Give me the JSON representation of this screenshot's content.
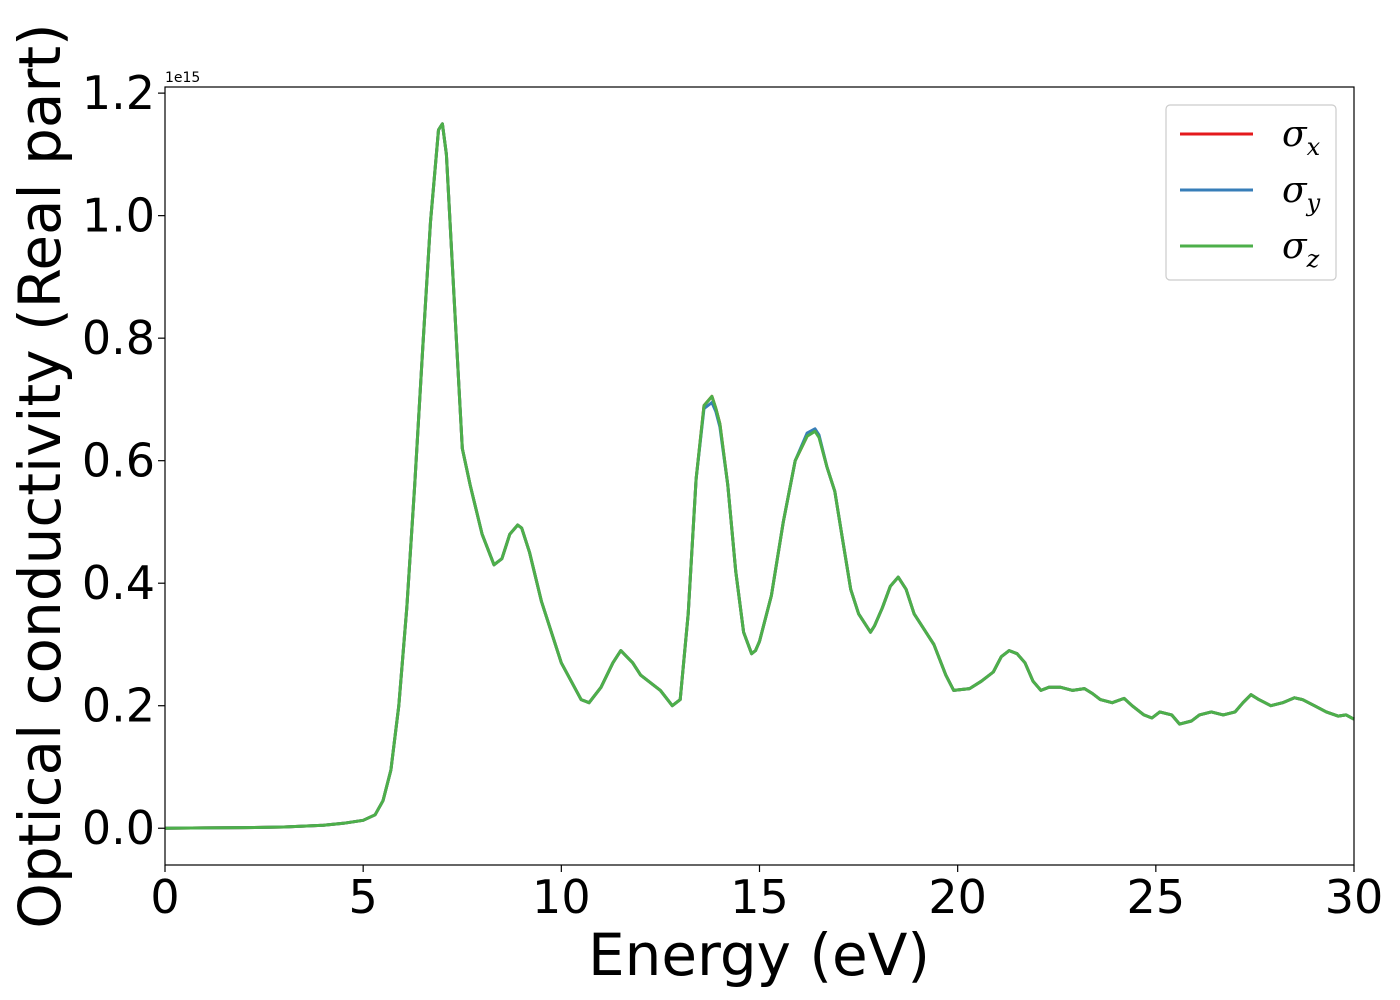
{
  "chart_data": {
    "type": "line",
    "title": "",
    "xlabel": "Energy (eV)",
    "ylabel": "Optical conductivity (Real part)",
    "offset_text": "1e15",
    "xlim": [
      0,
      30
    ],
    "ylim": [
      -0.06,
      1.21
    ],
    "y_scale": 1000000000000000.0,
    "xticks": [
      0,
      5,
      10,
      15,
      20,
      25,
      30
    ],
    "xtick_labels": [
      "0",
      "5",
      "10",
      "15",
      "20",
      "25",
      "30"
    ],
    "yticks": [
      0.0,
      0.2,
      0.4,
      0.6,
      0.8,
      1.0,
      1.2
    ],
    "ytick_labels": [
      "0.0",
      "0.2",
      "0.4",
      "0.6",
      "0.8",
      "1.0",
      "1.2"
    ],
    "grid": false,
    "legend_position": "top-right",
    "x": [
      0,
      1,
      2,
      3,
      4,
      4.5,
      5,
      5.3,
      5.5,
      5.7,
      5.9,
      6.1,
      6.3,
      6.5,
      6.7,
      6.9,
      7.0,
      7.1,
      7.3,
      7.5,
      7.7,
      8.0,
      8.3,
      8.5,
      8.7,
      8.9,
      9.0,
      9.2,
      9.5,
      10.0,
      10.5,
      10.7,
      11.0,
      11.3,
      11.5,
      11.8,
      12.0,
      12.3,
      12.5,
      12.8,
      13.0,
      13.2,
      13.4,
      13.6,
      13.8,
      13.9,
      14.0,
      14.2,
      14.4,
      14.6,
      14.8,
      14.9,
      15.0,
      15.3,
      15.6,
      15.9,
      16.2,
      16.4,
      16.5,
      16.7,
      16.9,
      17.1,
      17.3,
      17.5,
      17.8,
      17.9,
      18.1,
      18.3,
      18.5,
      18.7,
      18.9,
      19.1,
      19.4,
      19.7,
      19.9,
      20.3,
      20.6,
      20.9,
      21.1,
      21.3,
      21.5,
      21.7,
      21.9,
      22.1,
      22.3,
      22.6,
      22.9,
      23.2,
      23.4,
      23.6,
      23.9,
      24.2,
      24.4,
      24.7,
      24.9,
      25.1,
      25.4,
      25.6,
      25.9,
      26.1,
      26.4,
      26.7,
      27.0,
      27.2,
      27.4,
      27.6,
      27.9,
      28.2,
      28.5,
      28.7,
      29.0,
      29.3,
      29.6,
      29.8,
      30.0
    ],
    "series": [
      {
        "name": "σx",
        "color": "#e41a1c",
        "values": [
          0.0,
          0.0005,
          0.001,
          0.002,
          0.005,
          0.008,
          0.013,
          0.022,
          0.045,
          0.095,
          0.2,
          0.36,
          0.56,
          0.78,
          0.99,
          1.14,
          1.15,
          1.1,
          0.86,
          0.62,
          0.56,
          0.48,
          0.43,
          0.44,
          0.48,
          0.495,
          0.49,
          0.45,
          0.37,
          0.27,
          0.21,
          0.205,
          0.23,
          0.27,
          0.29,
          0.27,
          0.25,
          0.235,
          0.225,
          0.2,
          0.21,
          0.35,
          0.57,
          0.69,
          0.705,
          0.685,
          0.66,
          0.56,
          0.42,
          0.32,
          0.285,
          0.29,
          0.305,
          0.38,
          0.5,
          0.6,
          0.64,
          0.65,
          0.64,
          0.59,
          0.55,
          0.47,
          0.39,
          0.35,
          0.32,
          0.33,
          0.36,
          0.395,
          0.41,
          0.39,
          0.35,
          0.33,
          0.3,
          0.25,
          0.225,
          0.228,
          0.24,
          0.255,
          0.28,
          0.29,
          0.285,
          0.27,
          0.24,
          0.225,
          0.23,
          0.23,
          0.225,
          0.228,
          0.22,
          0.21,
          0.205,
          0.212,
          0.2,
          0.185,
          0.18,
          0.19,
          0.185,
          0.17,
          0.175,
          0.185,
          0.19,
          0.185,
          0.19,
          0.205,
          0.218,
          0.21,
          0.2,
          0.205,
          0.213,
          0.21,
          0.2,
          0.19,
          0.183,
          0.185,
          0.178
        ]
      },
      {
        "name": "σy",
        "color": "#377eb8",
        "values": [
          0.0,
          0.0005,
          0.001,
          0.002,
          0.005,
          0.008,
          0.013,
          0.022,
          0.045,
          0.095,
          0.2,
          0.36,
          0.56,
          0.78,
          0.99,
          1.14,
          1.15,
          1.1,
          0.86,
          0.62,
          0.56,
          0.48,
          0.43,
          0.44,
          0.48,
          0.495,
          0.49,
          0.45,
          0.37,
          0.27,
          0.21,
          0.205,
          0.23,
          0.27,
          0.29,
          0.27,
          0.25,
          0.235,
          0.225,
          0.2,
          0.21,
          0.35,
          0.57,
          0.685,
          0.695,
          0.68,
          0.655,
          0.56,
          0.42,
          0.32,
          0.285,
          0.29,
          0.305,
          0.38,
          0.5,
          0.6,
          0.645,
          0.652,
          0.642,
          0.59,
          0.55,
          0.47,
          0.39,
          0.35,
          0.32,
          0.33,
          0.36,
          0.395,
          0.41,
          0.39,
          0.35,
          0.33,
          0.3,
          0.25,
          0.225,
          0.228,
          0.24,
          0.255,
          0.28,
          0.29,
          0.285,
          0.27,
          0.24,
          0.225,
          0.23,
          0.23,
          0.225,
          0.228,
          0.22,
          0.21,
          0.205,
          0.212,
          0.2,
          0.185,
          0.18,
          0.19,
          0.185,
          0.17,
          0.175,
          0.185,
          0.19,
          0.185,
          0.19,
          0.205,
          0.218,
          0.21,
          0.2,
          0.205,
          0.213,
          0.21,
          0.2,
          0.19,
          0.183,
          0.185,
          0.178
        ]
      },
      {
        "name": "σz",
        "color": "#4daf4a",
        "values": [
          0.0,
          0.0005,
          0.001,
          0.002,
          0.005,
          0.008,
          0.013,
          0.022,
          0.045,
          0.095,
          0.2,
          0.36,
          0.56,
          0.78,
          0.99,
          1.14,
          1.15,
          1.1,
          0.86,
          0.62,
          0.56,
          0.48,
          0.43,
          0.44,
          0.48,
          0.495,
          0.49,
          0.45,
          0.37,
          0.27,
          0.21,
          0.205,
          0.23,
          0.27,
          0.29,
          0.27,
          0.25,
          0.235,
          0.225,
          0.2,
          0.21,
          0.35,
          0.57,
          0.69,
          0.705,
          0.685,
          0.66,
          0.56,
          0.42,
          0.32,
          0.285,
          0.29,
          0.305,
          0.38,
          0.5,
          0.6,
          0.64,
          0.648,
          0.638,
          0.59,
          0.55,
          0.47,
          0.39,
          0.35,
          0.32,
          0.33,
          0.36,
          0.395,
          0.41,
          0.39,
          0.35,
          0.33,
          0.3,
          0.25,
          0.225,
          0.228,
          0.24,
          0.255,
          0.28,
          0.29,
          0.285,
          0.27,
          0.24,
          0.225,
          0.23,
          0.23,
          0.225,
          0.228,
          0.22,
          0.21,
          0.205,
          0.212,
          0.2,
          0.185,
          0.18,
          0.19,
          0.185,
          0.17,
          0.175,
          0.185,
          0.19,
          0.185,
          0.19,
          0.205,
          0.218,
          0.21,
          0.2,
          0.205,
          0.213,
          0.21,
          0.2,
          0.19,
          0.183,
          0.185,
          0.178
        ]
      }
    ],
    "legend": [
      {
        "symbol": "σ",
        "sub": "x",
        "color": "#e41a1c"
      },
      {
        "symbol": "σ",
        "sub": "y",
        "color": "#377eb8"
      },
      {
        "symbol": "σ",
        "sub": "z",
        "color": "#4daf4a"
      }
    ]
  }
}
